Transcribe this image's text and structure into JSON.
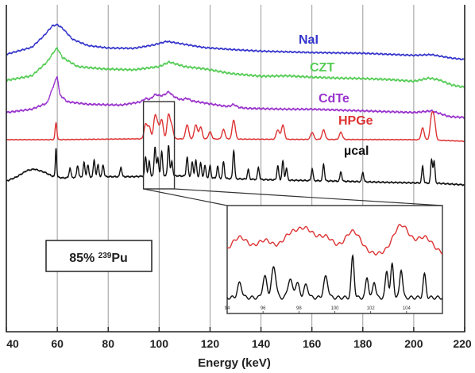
{
  "chart_data": {
    "type": "line",
    "title": "",
    "xlabel": "Energy (keV)",
    "ylabel": "",
    "xlim": [
      40,
      220
    ],
    "x_ticks": [
      "40",
      "60",
      "80",
      "100",
      "120",
      "140",
      "160",
      "180",
      "200",
      "220"
    ],
    "grid": true,
    "series": [
      {
        "name": "NaI",
        "color": "#3333cc",
        "continuum": [
          [
            40,
            0.15
          ],
          [
            50,
            0.35
          ],
          [
            55,
            0.7
          ],
          [
            58,
            0.96
          ],
          [
            60,
            1.0
          ],
          [
            62,
            0.9
          ],
          [
            66,
            0.58
          ],
          [
            72,
            0.4
          ],
          [
            80,
            0.33
          ],
          [
            90,
            0.32
          ],
          [
            98,
            0.42
          ],
          [
            103,
            0.52
          ],
          [
            108,
            0.46
          ],
          [
            118,
            0.34
          ],
          [
            130,
            0.28
          ],
          [
            140,
            0.24
          ],
          [
            150,
            0.22
          ],
          [
            160,
            0.2
          ],
          [
            170,
            0.19
          ],
          [
            180,
            0.18
          ],
          [
            190,
            0.15
          ],
          [
            200,
            0.12
          ],
          [
            207,
            0.14
          ],
          [
            210,
            0.1
          ],
          [
            215,
            0.04
          ],
          [
            220,
            0.0
          ]
        ],
        "peaks": []
      },
      {
        "name": "CZT",
        "color": "#55cc55",
        "continuum": [
          [
            40,
            0.15
          ],
          [
            50,
            0.25
          ],
          [
            56,
            0.55
          ],
          [
            59,
            0.8
          ],
          [
            60,
            0.85
          ],
          [
            62,
            0.65
          ],
          [
            68,
            0.45
          ],
          [
            78,
            0.4
          ],
          [
            90,
            0.38
          ],
          [
            100,
            0.45
          ],
          [
            104,
            0.55
          ],
          [
            110,
            0.45
          ],
          [
            118,
            0.4
          ],
          [
            128,
            0.3
          ],
          [
            140,
            0.24
          ],
          [
            150,
            0.25
          ],
          [
            160,
            0.22
          ],
          [
            170,
            0.2
          ],
          [
            180,
            0.19
          ],
          [
            190,
            0.17
          ],
          [
            200,
            0.13
          ],
          [
            206,
            0.2
          ],
          [
            210,
            0.16
          ],
          [
            215,
            0.05
          ],
          [
            220,
            0.0
          ]
        ],
        "peaks": []
      },
      {
        "name": "CdTe",
        "color": "#9933cc",
        "continuum": [
          [
            40,
            0.12
          ],
          [
            50,
            0.2
          ],
          [
            56,
            0.35
          ],
          [
            59,
            0.85
          ],
          [
            60,
            1.0
          ],
          [
            61,
            0.55
          ],
          [
            64,
            0.38
          ],
          [
            72,
            0.32
          ],
          [
            85,
            0.3
          ],
          [
            95,
            0.4
          ],
          [
            100,
            0.52
          ],
          [
            104,
            0.56
          ],
          [
            108,
            0.44
          ],
          [
            115,
            0.38
          ],
          [
            125,
            0.28
          ],
          [
            135,
            0.22
          ],
          [
            150,
            0.2
          ],
          [
            160,
            0.2
          ],
          [
            170,
            0.18
          ],
          [
            180,
            0.16
          ],
          [
            190,
            0.14
          ],
          [
            200,
            0.12
          ],
          [
            207,
            0.16
          ],
          [
            210,
            0.1
          ],
          [
            214,
            0.02
          ],
          [
            220,
            0.0
          ]
        ],
        "peaks": [
          [
            94.7,
            0.25,
            0.9
          ],
          [
            98.4,
            0.3,
            0.9
          ],
          [
            103.7,
            0.25,
            0.9
          ],
          [
            111.0,
            0.2,
            0.9
          ],
          [
            129.3,
            0.25,
            0.9
          ]
        ]
      },
      {
        "name": "HPGe",
        "color": "#dd3333",
        "continuum": [
          [
            40,
            0.1
          ],
          [
            60,
            0.1
          ],
          [
            90,
            0.15
          ],
          [
            110,
            0.15
          ],
          [
            150,
            0.12
          ],
          [
            200,
            0.1
          ],
          [
            212,
            0.05
          ],
          [
            220,
            0.0
          ]
        ],
        "peaks": [
          [
            59.5,
            0.7,
            0.35
          ],
          [
            94.7,
            0.6,
            0.6
          ],
          [
            96.1,
            0.5,
            0.6
          ],
          [
            98.4,
            0.9,
            0.6
          ],
          [
            99.5,
            0.5,
            0.6
          ],
          [
            101.0,
            0.8,
            0.6
          ],
          [
            103.7,
            1.0,
            0.6
          ],
          [
            105.0,
            0.5,
            0.6
          ],
          [
            111.0,
            0.6,
            0.6
          ],
          [
            114.4,
            0.6,
            0.6
          ],
          [
            116.3,
            0.5,
            0.6
          ],
          [
            120.0,
            0.3,
            0.6
          ],
          [
            125.3,
            0.4,
            0.6
          ],
          [
            129.3,
            0.8,
            0.6
          ],
          [
            146.6,
            0.4,
            0.6
          ],
          [
            148.6,
            0.6,
            0.6
          ],
          [
            160.1,
            0.3,
            0.6
          ],
          [
            164.6,
            0.4,
            0.6
          ],
          [
            171.4,
            0.3,
            0.6
          ],
          [
            203.5,
            0.5,
            0.6
          ],
          [
            207.0,
            0.9,
            0.6
          ],
          [
            208.0,
            0.8,
            0.6
          ]
        ]
      },
      {
        "name": "µcal",
        "color": "#111111",
        "continuum": [
          [
            40,
            0.12
          ],
          [
            44,
            0.25
          ],
          [
            48,
            0.45
          ],
          [
            51,
            0.5
          ],
          [
            55,
            0.4
          ],
          [
            58,
            0.28
          ],
          [
            62,
            0.22
          ],
          [
            70,
            0.25
          ],
          [
            80,
            0.26
          ],
          [
            90,
            0.26
          ],
          [
            100,
            0.3
          ],
          [
            110,
            0.28
          ],
          [
            120,
            0.22
          ],
          [
            135,
            0.18
          ],
          [
            150,
            0.15
          ],
          [
            170,
            0.12
          ],
          [
            190,
            0.08
          ],
          [
            210,
            0.05
          ],
          [
            220,
            0.0
          ]
        ],
        "peaks": [
          [
            59.5,
            1.2,
            0.25
          ],
          [
            65.0,
            0.4,
            0.35
          ],
          [
            68.0,
            0.5,
            0.35
          ],
          [
            70.5,
            0.6,
            0.35
          ],
          [
            72.0,
            0.5,
            0.35
          ],
          [
            74.5,
            0.7,
            0.35
          ],
          [
            76.0,
            0.5,
            0.35
          ],
          [
            78.0,
            0.5,
            0.35
          ],
          [
            85.0,
            0.4,
            0.35
          ],
          [
            94.7,
            0.8,
            0.35
          ],
          [
            96.1,
            0.6,
            0.35
          ],
          [
            98.4,
            1.2,
            0.35
          ],
          [
            99.5,
            0.7,
            0.35
          ],
          [
            101.0,
            1.0,
            0.35
          ],
          [
            103.7,
            1.3,
            0.35
          ],
          [
            105.0,
            0.6,
            0.35
          ],
          [
            111.0,
            0.8,
            0.35
          ],
          [
            113.0,
            0.6,
            0.35
          ],
          [
            114.4,
            0.7,
            0.35
          ],
          [
            116.3,
            0.6,
            0.35
          ],
          [
            118.0,
            0.5,
            0.35
          ],
          [
            120.0,
            0.5,
            0.35
          ],
          [
            123.0,
            0.5,
            0.35
          ],
          [
            125.3,
            0.7,
            0.35
          ],
          [
            129.3,
            1.2,
            0.35
          ],
          [
            135.0,
            0.4,
            0.35
          ],
          [
            139.0,
            0.5,
            0.35
          ],
          [
            146.6,
            0.6,
            0.35
          ],
          [
            148.6,
            0.8,
            0.35
          ],
          [
            150.0,
            0.5,
            0.35
          ],
          [
            160.1,
            0.5,
            0.35
          ],
          [
            164.6,
            0.7,
            0.35
          ],
          [
            171.4,
            0.4,
            0.35
          ],
          [
            180.0,
            0.4,
            0.35
          ],
          [
            203.5,
            0.7,
            0.35
          ],
          [
            207.0,
            1.0,
            0.35
          ],
          [
            208.0,
            0.9,
            0.35
          ]
        ]
      }
    ],
    "inset": {
      "xlim": [
        94,
        106
      ],
      "x_ticks": [
        "94",
        "96",
        "98",
        "100",
        "102",
        "104"
      ],
      "series": [
        {
          "name": "HPGe",
          "color": "#dd3333",
          "peaks": [
            [
              94.7,
              0.55,
              0.45
            ],
            [
              96.1,
              0.45,
              0.45
            ],
            [
              97.5,
              0.6,
              0.45
            ],
            [
              98.4,
              0.75,
              0.45
            ],
            [
              99.5,
              0.55,
              0.45
            ],
            [
              101.0,
              0.75,
              0.45
            ],
            [
              103.7,
              0.95,
              0.45
            ],
            [
              105.0,
              0.55,
              0.45
            ]
          ]
        },
        {
          "name": "µcal",
          "color": "#111111",
          "peaks": [
            [
              94.7,
              0.35,
              0.12
            ],
            [
              96.1,
              0.5,
              0.12
            ],
            [
              96.6,
              0.75,
              0.12
            ],
            [
              97.5,
              0.45,
              0.12
            ],
            [
              97.9,
              0.35,
              0.12
            ],
            [
              98.4,
              0.3,
              0.12
            ],
            [
              99.5,
              0.5,
              0.12
            ],
            [
              101.0,
              1.0,
              0.08
            ],
            [
              101.8,
              0.5,
              0.08
            ],
            [
              102.2,
              0.4,
              0.08
            ],
            [
              102.9,
              0.65,
              0.08
            ],
            [
              103.2,
              0.8,
              0.08
            ],
            [
              103.7,
              0.7,
              0.08
            ],
            [
              105.0,
              0.55,
              0.08
            ]
          ]
        }
      ]
    },
    "annotation": {
      "prefix": "85% ",
      "superscript": "239",
      "element": "Pu"
    }
  }
}
